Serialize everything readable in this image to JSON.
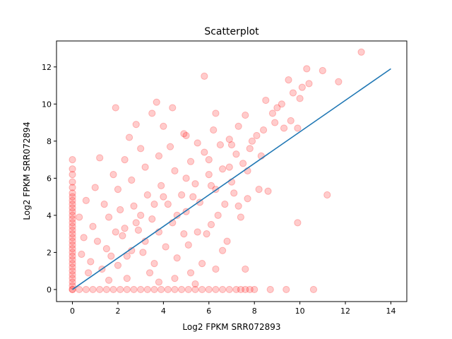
{
  "chart_data": {
    "type": "scatter",
    "title": "Scatterplot",
    "xlabel": "Log2 FPKM SRR072893",
    "ylabel": "Log2 FPKM SRR072894",
    "xlim": [
      -0.7,
      14.7
    ],
    "ylim": [
      -0.65,
      13.4
    ],
    "xticks": [
      0,
      2,
      4,
      6,
      8,
      10,
      12,
      14
    ],
    "yticks": [
      0,
      2,
      4,
      6,
      8,
      10,
      12
    ],
    "grid": false,
    "legend": "none",
    "series": [
      {
        "kind": "points",
        "color": "#ff0000",
        "alpha": 0.2,
        "points": [
          [
            12.7,
            12.8
          ],
          [
            11.2,
            5.1
          ],
          [
            9.9,
            3.6
          ],
          [
            10.6,
            0.0
          ],
          [
            9.4,
            0.0
          ],
          [
            8.7,
            0.0
          ],
          [
            8.0,
            0.0
          ],
          [
            7.6,
            1.1
          ],
          [
            5.8,
            11.5
          ],
          [
            1.9,
            9.8
          ],
          [
            10.3,
            11.9
          ],
          [
            9.5,
            11.3
          ],
          [
            8.5,
            10.2
          ],
          [
            11.7,
            11.2
          ],
          [
            11.0,
            11.8
          ],
          [
            10.1,
            10.9
          ],
          [
            9.0,
            9.8
          ],
          [
            9.7,
            10.6
          ],
          [
            8.8,
            9.5
          ],
          [
            9.3,
            8.7
          ],
          [
            9.9,
            8.7
          ],
          [
            8.2,
            5.4
          ],
          [
            7.7,
            4.9
          ],
          [
            8.6,
            5.3
          ],
          [
            6.6,
            2.1
          ],
          [
            6.8,
            2.6
          ],
          [
            5.2,
            0.9
          ],
          [
            5.7,
            1.4
          ],
          [
            4.5,
            0.6
          ],
          [
            3.8,
            0.4
          ],
          [
            7.4,
            3.9
          ],
          [
            2.5,
            8.2
          ],
          [
            3.0,
            7.6
          ],
          [
            3.5,
            9.5
          ],
          [
            2.8,
            8.9
          ],
          [
            4.4,
            9.8
          ],
          [
            3.7,
            10.1
          ],
          [
            4.9,
            8.4
          ],
          [
            4.0,
            8.8
          ],
          [
            6.3,
            9.5
          ],
          [
            1.2,
            7.1
          ],
          [
            1.8,
            6.2
          ],
          [
            2.3,
            7.0
          ],
          [
            1.0,
            5.5
          ],
          [
            0.6,
            4.8
          ],
          [
            0.3,
            3.9
          ],
          [
            0.5,
            2.8
          ],
          [
            0.9,
            3.4
          ],
          [
            0.4,
            1.9
          ],
          [
            1.5,
            2.2
          ],
          [
            1.9,
            3.1
          ],
          [
            2.4,
            1.8
          ],
          [
            3.1,
            2.0
          ],
          [
            3.6,
            1.4
          ],
          [
            4.1,
            2.3
          ],
          [
            4.6,
            1.7
          ],
          [
            5.1,
            2.4
          ],
          [
            5.5,
            3.1
          ],
          [
            6.1,
            3.5
          ],
          [
            6.7,
            4.6
          ],
          [
            7.1,
            5.2
          ],
          [
            7.5,
            6.8
          ],
          [
            7.8,
            7.6
          ],
          [
            8.1,
            8.3
          ],
          [
            6.5,
            7.8
          ],
          [
            5.8,
            7.4
          ],
          [
            5.2,
            6.9
          ],
          [
            4.5,
            6.4
          ],
          [
            3.9,
            5.6
          ],
          [
            3.3,
            5.1
          ],
          [
            2.7,
            4.5
          ],
          [
            2.1,
            4.3
          ],
          [
            1.6,
            3.9
          ],
          [
            1.1,
            2.6
          ],
          [
            0.8,
            1.5
          ],
          [
            1.3,
            1.1
          ],
          [
            2.0,
            1.3
          ],
          [
            2.9,
            3.2
          ],
          [
            3.5,
            3.8
          ],
          [
            4.2,
            4.6
          ],
          [
            4.8,
            5.1
          ],
          [
            5.4,
            5.7
          ],
          [
            6.0,
            6.2
          ],
          [
            6.6,
            6.5
          ],
          [
            7.2,
            7.3
          ],
          [
            7.9,
            8.0
          ],
          [
            8.4,
            8.6
          ],
          [
            8.9,
            9.0
          ],
          [
            9.2,
            10.0
          ],
          [
            10.0,
            10.3
          ],
          [
            10.4,
            11.1
          ],
          [
            9.6,
            9.1
          ],
          [
            8.3,
            7.2
          ],
          [
            7.7,
            6.4
          ],
          [
            7.0,
            5.8
          ],
          [
            6.3,
            5.4
          ],
          [
            5.6,
            4.7
          ],
          [
            5.0,
            4.2
          ],
          [
            4.4,
            3.6
          ],
          [
            3.8,
            3.1
          ],
          [
            3.2,
            2.6
          ],
          [
            2.6,
            2.1
          ],
          [
            2.2,
            2.9
          ],
          [
            1.7,
            1.8
          ],
          [
            0.7,
            0.9
          ],
          [
            1.4,
            4.6
          ],
          [
            2.0,
            5.4
          ],
          [
            2.6,
            5.9
          ],
          [
            3.2,
            6.6
          ],
          [
            3.8,
            7.2
          ],
          [
            4.3,
            7.7
          ],
          [
            5.0,
            8.3
          ],
          [
            5.5,
            7.9
          ],
          [
            6.2,
            8.6
          ],
          [
            6.9,
            8.1
          ],
          [
            7.3,
            8.8
          ],
          [
            7.6,
            9.4
          ],
          [
            6.4,
            4.0
          ],
          [
            5.9,
            3.0
          ],
          [
            7.3,
            4.5
          ],
          [
            4.9,
            3.0
          ],
          [
            3.4,
            0.9
          ],
          [
            2.4,
            0.6
          ],
          [
            1.6,
            0.5
          ],
          [
            6.3,
            1.1
          ],
          [
            5.4,
            0.3
          ],
          [
            3.0,
            4.0
          ],
          [
            4.0,
            5.0
          ],
          [
            5.0,
            6.0
          ],
          [
            6.0,
            7.0
          ],
          [
            7.0,
            7.8
          ],
          [
            4.6,
            4.0
          ],
          [
            5.3,
            5.0
          ],
          [
            6.1,
            5.6
          ],
          [
            6.9,
            6.6
          ],
          [
            3.6,
            4.6
          ],
          [
            2.8,
            3.6
          ],
          [
            2.3,
            3.3
          ]
        ],
        "zero_x_column": [
          7.0,
          6.5,
          6.2,
          5.8,
          5.5,
          5.2,
          5.0,
          4.8,
          4.6,
          4.4,
          4.2,
          4.0,
          3.8,
          3.6,
          3.4,
          3.2,
          3.0,
          2.8,
          2.6,
          2.4,
          2.2,
          2.0,
          1.8,
          1.6,
          1.4,
          1.2,
          1.0,
          0.8,
          0.6,
          0.4,
          0.2,
          0.0
        ],
        "zero_y_row": [
          0.0,
          0.3,
          0.6,
          0.9,
          1.2,
          1.5,
          1.8,
          2.1,
          2.4,
          2.7,
          3.0,
          3.3,
          3.6,
          3.9,
          4.2,
          4.5,
          4.8,
          5.1,
          5.4,
          5.7,
          6.0,
          6.3,
          6.6,
          6.9,
          7.2,
          7.4,
          7.6,
          7.8
        ]
      },
      {
        "kind": "line",
        "color": "#1f77b4",
        "points": [
          [
            0,
            0
          ],
          [
            14,
            11.9
          ]
        ]
      }
    ]
  }
}
